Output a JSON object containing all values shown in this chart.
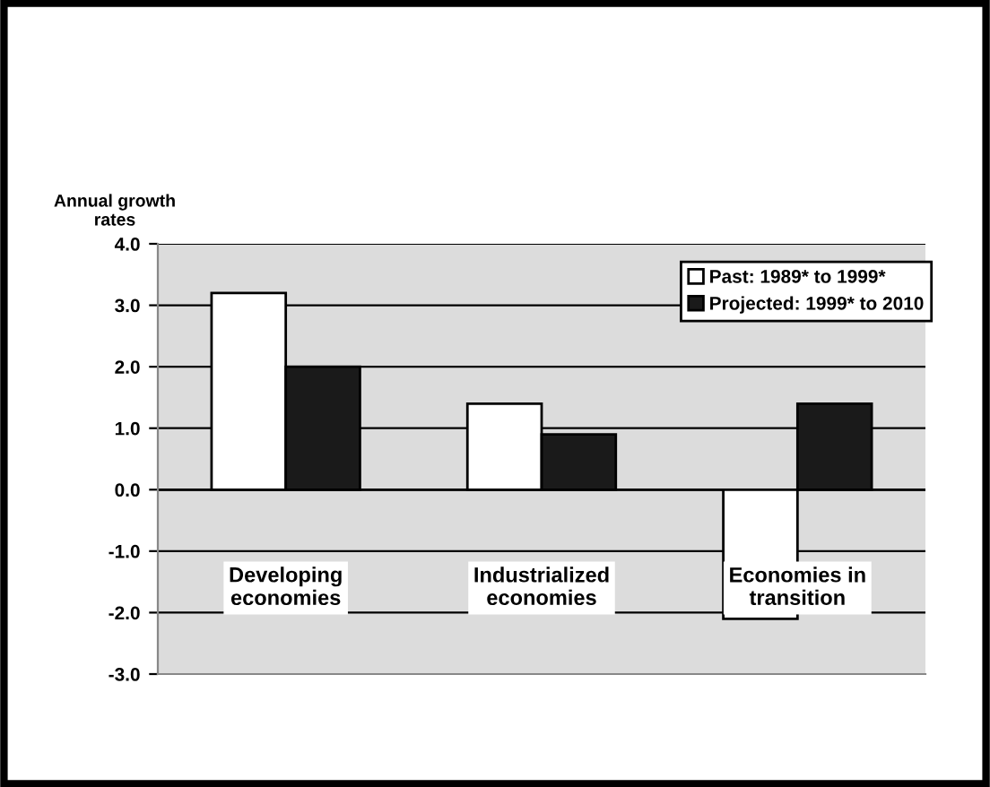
{
  "chart_data": {
    "type": "bar",
    "ylabel": "Annual growth\nrates",
    "categories": [
      "Developing\neconomies",
      "Industrialized\neconomies",
      "Economies in\ntransition"
    ],
    "series": [
      {
        "name": "Past: 1989* to 1999*",
        "color": "#ffffff",
        "values": [
          3.2,
          1.4,
          -2.1
        ]
      },
      {
        "name": "Projected: 1999* to 2010",
        "color": "#1a1a1a",
        "values": [
          2.0,
          0.9,
          1.4
        ]
      }
    ],
    "ylim": [
      -3.0,
      4.0
    ],
    "yticks": [
      {
        "value": -3,
        "label": "-3.0"
      },
      {
        "value": -2,
        "label": "-2.0"
      },
      {
        "value": -1,
        "label": "-1.0"
      },
      {
        "value": 0,
        "label": "0.0"
      },
      {
        "value": 1,
        "label": "1.0"
      },
      {
        "value": 2,
        "label": "2.0"
      },
      {
        "value": 3,
        "label": "3.0"
      },
      {
        "value": 4,
        "label": "4.0"
      }
    ],
    "grid": "y",
    "legend": "top right"
  }
}
